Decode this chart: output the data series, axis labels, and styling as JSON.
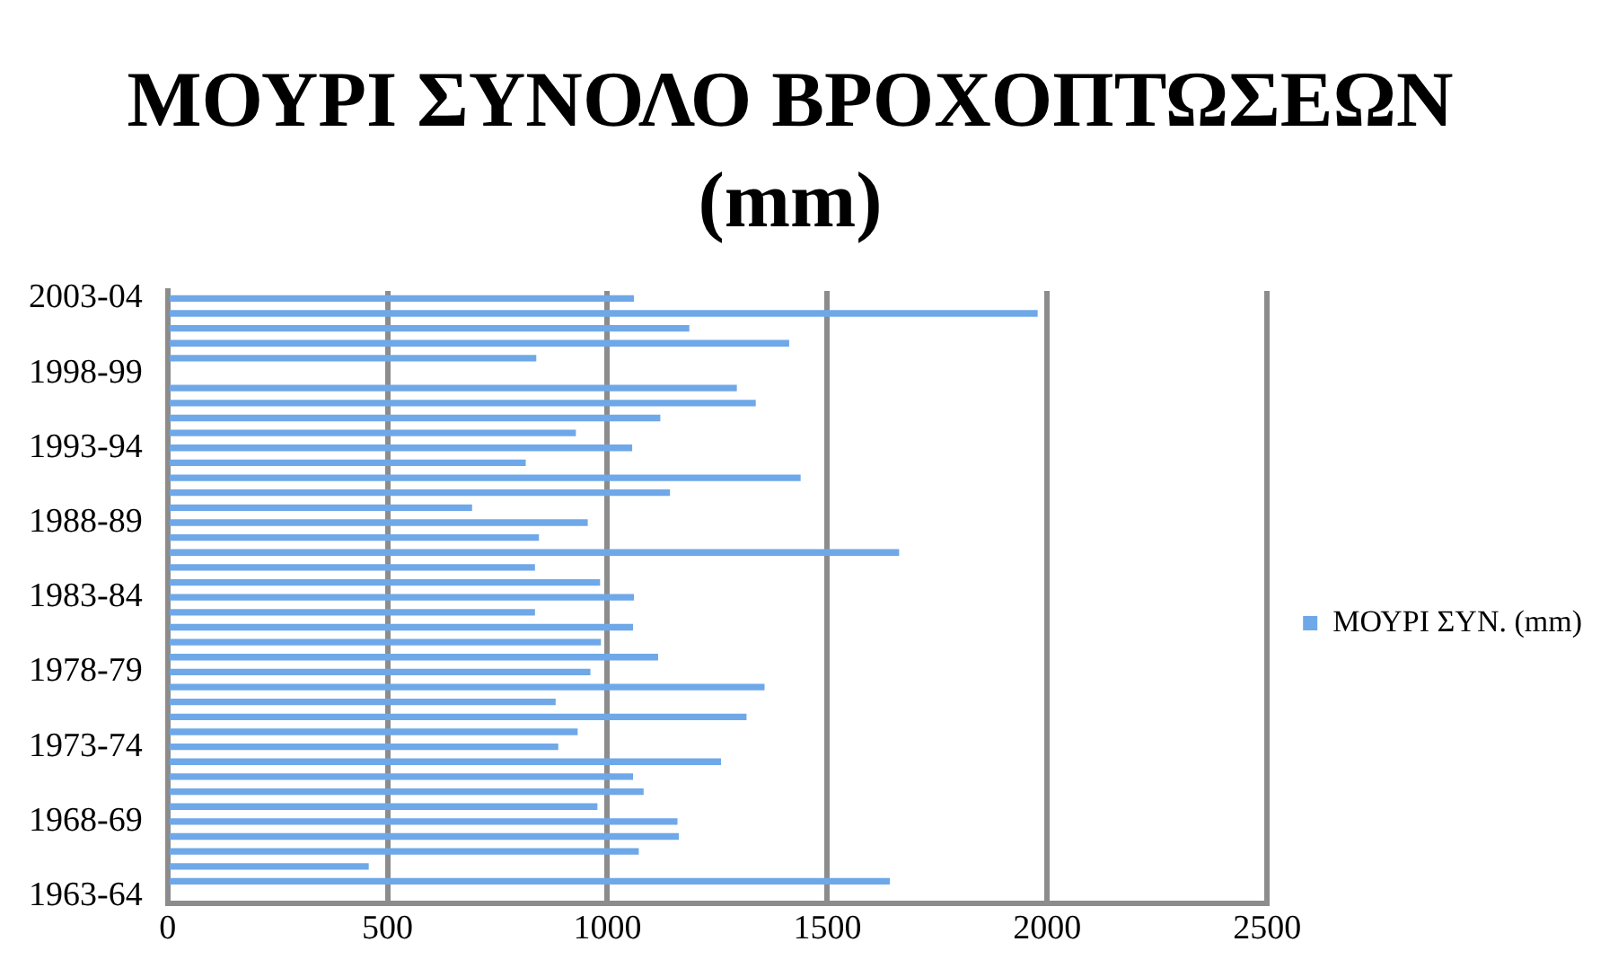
{
  "chart_data": {
    "type": "bar",
    "orientation": "horizontal",
    "title": "ΜΟΥΡΙ ΣΥΝΟΛΟ ΒΡΟΧΟΠΤΩΣΕΩΝ (mm)",
    "categories": [
      "2003-04",
      null,
      null,
      null,
      null,
      "1998-99",
      null,
      null,
      null,
      null,
      "1993-94",
      null,
      null,
      null,
      null,
      "1988-89",
      null,
      null,
      null,
      null,
      "1983-84",
      null,
      null,
      null,
      null,
      "1978-79",
      null,
      null,
      null,
      null,
      "1973-74",
      null,
      null,
      null,
      null,
      "1968-69",
      null,
      null,
      null,
      null,
      "1963-64"
    ],
    "series": [
      {
        "name": "ΜΟΥΡΙ ΣΥΝ. (mm)",
        "color": "#6fa8e8",
        "values": [
          1059,
          1977,
          1185,
          1412,
          837,
          null,
          1293,
          1336,
          1119,
          927,
          1055,
          813,
          1438,
          1141,
          691,
          954,
          843,
          1662,
          834,
          982,
          1059,
          834,
          1057,
          984,
          1114,
          960,
          1356,
          881,
          1315,
          931,
          887,
          1257,
          1057,
          1081,
          976,
          1158,
          1161,
          1070,
          456,
          1641,
          null
        ]
      }
    ],
    "xlim": [
      0,
      2500
    ],
    "xticks": [
      0,
      500,
      1000,
      1500,
      2000,
      2500
    ],
    "grid": "x",
    "legend": "right"
  }
}
